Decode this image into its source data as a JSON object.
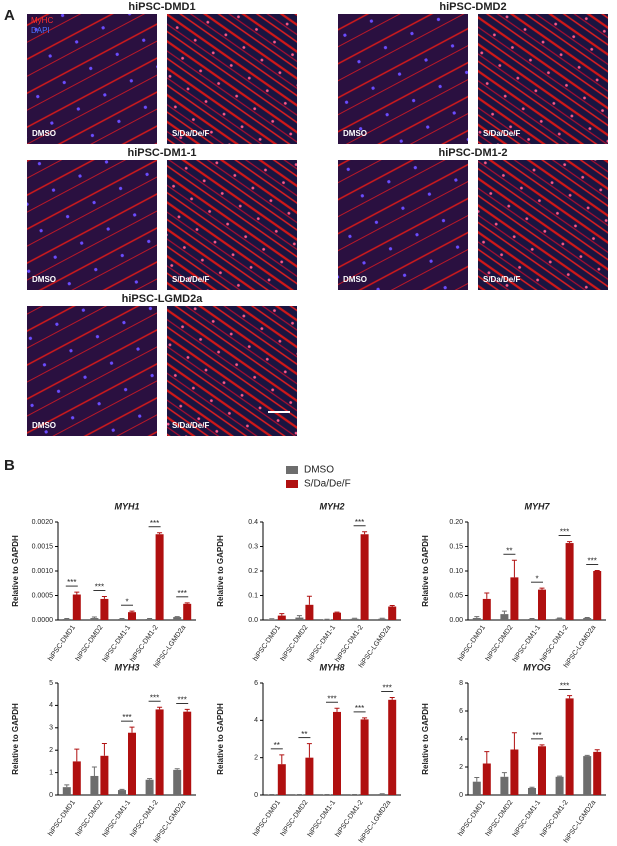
{
  "panel_a": {
    "label": "A",
    "legend": [
      "MyHC",
      "DAPI"
    ],
    "groups": [
      {
        "title": "hiPSC-DMD1",
        "images": [
          "DMSO",
          "S/Da/De/F"
        ]
      },
      {
        "title": "hiPSC-DMD2",
        "images": [
          "DMSO",
          "S/Da/De/F"
        ]
      },
      {
        "title": "hiPSC-DM1-1",
        "images": [
          "DMSO",
          "S/Da/De/F"
        ]
      },
      {
        "title": "hiPSC-DM1-2",
        "images": [
          "DMSO",
          "S/Da/De/F"
        ]
      },
      {
        "title": "hiPSC-LGMD2a",
        "images": [
          "DMSO",
          "S/Da/De/F"
        ]
      }
    ]
  },
  "panel_b_label": "B",
  "chart_data": [
    {
      "type": "bar",
      "title": "MYH1",
      "y_label": "Relative to GAPDH",
      "categories": [
        "hiPSC-DMD1",
        "hiPSC-DMD2",
        "hiPSC-DM1-1",
        "hiPSC-DM1-2",
        "hiPSC-LGMD2a"
      ],
      "series": [
        {
          "name": "DMSO",
          "color": "#6d6d6d",
          "values": [
            2e-05,
            4e-05,
            2e-05,
            2e-05,
            6e-05
          ],
          "errors": [
            1e-05,
            2e-05,
            1e-05,
            1e-05,
            1e-05
          ]
        },
        {
          "name": "S/Da/De/F",
          "color": "#b01010",
          "values": [
            0.00052,
            0.00043,
            0.00016,
            0.00175,
            0.00033
          ],
          "errors": [
            5e-05,
            5e-05,
            2e-05,
            3e-05,
            2e-05
          ]
        }
      ],
      "annotations": [
        "***",
        "***",
        "*",
        "***",
        "***"
      ],
      "ylim": [
        0,
        0.002
      ],
      "yticks": [
        {
          "value": 0,
          "label": "0.0000"
        },
        {
          "value": 0.0005,
          "label": "0.0005"
        },
        {
          "value": 0.001,
          "label": "0.0010"
        },
        {
          "value": 0.0015,
          "label": "0.0015"
        },
        {
          "value": 0.002,
          "label": "0.0020"
        }
      ]
    },
    {
      "type": "bar",
      "title": "MYH2",
      "y_label": "Relative to GAPDH",
      "categories": [
        "hiPSC-DMD1",
        "hiPSC-DMD2",
        "hiPSC-DM1-1",
        "hiPSC-DM1-2",
        "hiPSC-LGMD2a"
      ],
      "series": [
        {
          "name": "DMSO",
          "color": "#6d6d6d",
          "values": [
            0.003,
            0.01,
            0.002,
            0.005,
            0.005
          ],
          "errors": [
            0.002,
            0.008,
            0.001,
            0.002,
            0.002
          ]
        },
        {
          "name": "S/Da/De/F",
          "color": "#b01010",
          "values": [
            0.018,
            0.062,
            0.03,
            0.35,
            0.055
          ],
          "errors": [
            0.008,
            0.035,
            0.002,
            0.01,
            0.004
          ]
        }
      ],
      "annotations": [
        null,
        null,
        null,
        "***",
        null
      ],
      "ylim": [
        0,
        0.4
      ],
      "yticks": [
        {
          "value": 0,
          "label": "0.0"
        },
        0.1,
        0.2,
        0.3,
        0.4
      ]
    },
    {
      "type": "bar",
      "title": "MYH7",
      "y_label": "Relative to GAPDH",
      "categories": [
        "hiPSC-DMD1",
        "hiPSC-DMD2",
        "hiPSC-DM1-1",
        "hiPSC-DM1-2",
        "hiPSC-LGMD2a"
      ],
      "series": [
        {
          "name": "DMSO",
          "color": "#6d6d6d",
          "values": [
            0.004,
            0.012,
            0.002,
            0.003,
            0.004
          ],
          "errors": [
            0.003,
            0.006,
            0.001,
            0.001,
            0.001
          ]
        },
        {
          "name": "S/Da/De/F",
          "color": "#b01010",
          "values": [
            0.043,
            0.087,
            0.062,
            0.157,
            0.1
          ],
          "errors": [
            0.012,
            0.035,
            0.003,
            0.003,
            0.001
          ]
        }
      ],
      "annotations": [
        null,
        "**",
        "*",
        "***",
        "***"
      ],
      "ylim": [
        0,
        0.2
      ],
      "yticks": [
        {
          "value": 0,
          "label": "0.00"
        },
        0.05,
        {
          "value": 0.1,
          "label": "0.10"
        },
        0.15,
        {
          "value": 0.2,
          "label": "0.20"
        }
      ]
    },
    {
      "type": "bar",
      "title": "MYH3",
      "y_label": "Relative to GAPDH",
      "categories": [
        "hiPSC-DMD1",
        "hiPSC-DMD2",
        "hiPSC-DM1-1",
        "hiPSC-DM1-2",
        "hiPSC-LGMD2a"
      ],
      "series": [
        {
          "name": "DMSO",
          "color": "#6d6d6d",
          "values": [
            0.35,
            0.85,
            0.22,
            0.68,
            1.12
          ],
          "errors": [
            0.1,
            0.4,
            0.03,
            0.05,
            0.05
          ]
        },
        {
          "name": "S/Da/De/F",
          "color": "#b01010",
          "values": [
            1.5,
            1.75,
            2.78,
            3.82,
            3.72
          ],
          "errors": [
            0.55,
            0.55,
            0.25,
            0.1,
            0.1
          ]
        }
      ],
      "annotations": [
        null,
        null,
        "***",
        "***",
        "***"
      ],
      "ylim": [
        0,
        5
      ],
      "yticks": [
        0,
        1,
        2,
        3,
        4,
        5
      ]
    },
    {
      "type": "bar",
      "title": "MYH8",
      "y_label": "Relative to GAPDH",
      "categories": [
        "hiPSC-DMD1",
        "hiPSC-DMD2",
        "hiPSC-DM1-1",
        "hiPSC-DM1-2",
        "hiPSC-LGMD2a"
      ],
      "series": [
        {
          "name": "DMSO",
          "color": "#6d6d6d",
          "values": [
            0.02,
            0.02,
            0.02,
            0.02,
            0.05
          ],
          "errors": [
            0.01,
            0.01,
            0.01,
            0.01,
            0.02
          ]
        },
        {
          "name": "S/Da/De/F",
          "color": "#b01010",
          "values": [
            1.65,
            2.0,
            4.45,
            4.05,
            5.1
          ],
          "errors": [
            0.5,
            0.75,
            0.2,
            0.08,
            0.12
          ]
        }
      ],
      "annotations": [
        "**",
        "**",
        "***",
        "***",
        "***"
      ],
      "ylim": [
        0,
        6
      ],
      "yticks": [
        0,
        2,
        4,
        6
      ]
    },
    {
      "type": "bar",
      "title": "MYOG",
      "y_label": "Relative to GAPDH",
      "categories": [
        "hiPSC-DMD1",
        "hiPSC-DMD2",
        "hiPSC-DM1-1",
        "hiPSC-DM1-2",
        "hiPSC-LGMD2a"
      ],
      "series": [
        {
          "name": "DMSO",
          "color": "#6d6d6d",
          "values": [
            0.95,
            1.3,
            0.5,
            1.3,
            2.78
          ],
          "errors": [
            0.3,
            0.3,
            0.05,
            0.05,
            0.05
          ]
        },
        {
          "name": "S/Da/De/F",
          "color": "#b01010",
          "values": [
            2.25,
            3.25,
            3.48,
            6.9,
            3.08
          ],
          "errors": [
            0.85,
            1.2,
            0.1,
            0.2,
            0.15
          ]
        }
      ],
      "annotations": [
        null,
        null,
        "***",
        "***",
        null
      ],
      "ylim": [
        0,
        8
      ],
      "yticks": [
        0,
        2,
        4,
        6,
        8
      ]
    }
  ]
}
